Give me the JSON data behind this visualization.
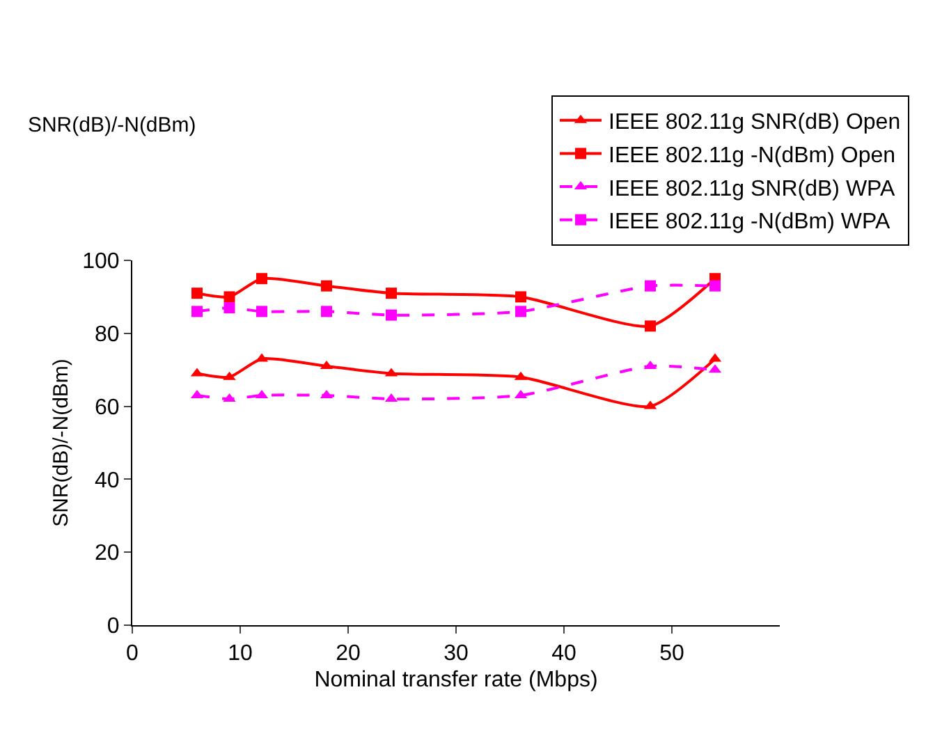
{
  "chart_data": {
    "type": "line",
    "title": "SNR(dB)/-N(dBm)",
    "xlabel": "Nominal transfer rate (Mbps)",
    "ylabel": "SNR(dB)/-N(dBm)",
    "x": [
      6,
      9,
      12,
      18,
      24,
      36,
      48,
      54
    ],
    "series": [
      {
        "name": "IEEE 802.11g SNR(dB) Open",
        "color": "#ff0000",
        "marker": "triangle",
        "line_style": "solid",
        "values": [
          69,
          68,
          73,
          71,
          69,
          68,
          60,
          73
        ]
      },
      {
        "name": "IEEE 802.11g -N(dBm) Open",
        "color": "#ff0000",
        "marker": "square",
        "line_style": "solid",
        "values": [
          91,
          90,
          95,
          93,
          91,
          90,
          82,
          95
        ]
      },
      {
        "name": "IEEE 802.11g SNR(dB) WPA",
        "color": "#ff00ff",
        "marker": "triangle",
        "line_style": "dashed",
        "values": [
          63,
          62,
          63,
          63,
          62,
          63,
          71,
          70
        ]
      },
      {
        "name": "IEEE 802.11g -N(dBm) WPA",
        "color": "#ff00ff",
        "marker": "square",
        "line_style": "dashed",
        "values": [
          86,
          87,
          86,
          86,
          85,
          86,
          93,
          93
        ]
      }
    ],
    "xlim": [
      0,
      60
    ],
    "xticks": [
      0,
      10,
      20,
      30,
      40,
      50
    ],
    "ylim": [
      0,
      100
    ],
    "yticks": [
      0,
      20,
      40,
      60,
      80,
      100
    ],
    "legend": "top right"
  }
}
